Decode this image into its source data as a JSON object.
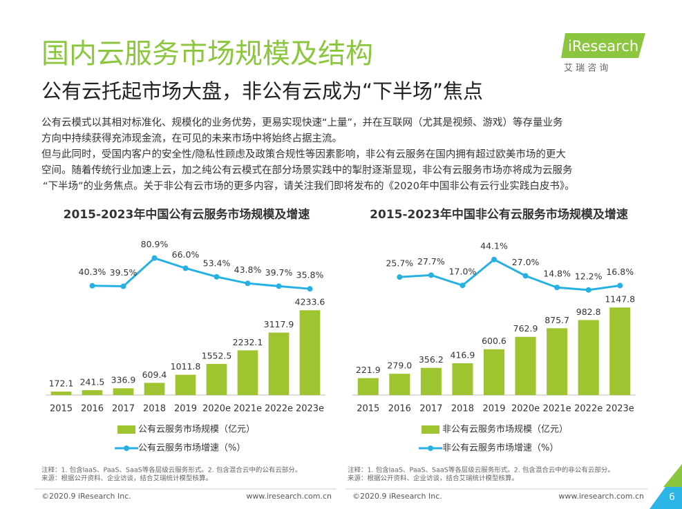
{
  "header": {
    "title": "国内云服务市场规模及结构",
    "subtitle": "公有云托起市场大盘，非公有云成为“下半场”焦点",
    "logo": "iResearch",
    "logo_cn": "艾 瑞 咨 询"
  },
  "body": [
    "公有云模式以其相对标准化、规模化的业务优势，更易实现快速“上量”，并在互联网（尤其是视频、游戏）等存量业务",
    "方向中持续获得充沛现金流，在可见的未来市场中将始终占据主流。",
    "但与此同时，受国内客户的安全性/隐私性顾虑及政策合规性等因素影响，非公有云服务在国内拥有超过欧美市场的更大",
    "空间。随着传统行业加速上云，加之纯公有云模式在部分场景实践中的掣肘逐渐显现，非公有云服务市场亦将成为云服务",
    "“下半场”的业务焦点。关于非公有云市场的更多内容，请关注我们即将发布的《2020年中国非公有云行业实践白皮书》。"
  ],
  "chart_data": [
    {
      "type": "bar",
      "title": "2015-2023年中国公有云服务市场规模及增速",
      "categories": [
        "2015",
        "2016",
        "2017",
        "2018",
        "2019",
        "2020e",
        "2021e",
        "2022e",
        "2023e"
      ],
      "series": [
        {
          "name": "公有云服务市场规模（亿元）",
          "type": "bar",
          "color": "#9ec52f",
          "values": [
            172.1,
            241.5,
            336.9,
            609.4,
            1011.8,
            1552.5,
            2232.1,
            3117.9,
            4233.6
          ]
        },
        {
          "name": "公有云服务市场增速（%）",
          "type": "line",
          "axis": "y2",
          "color": "#27b1e2",
          "values": [
            null,
            40.3,
            39.5,
            80.9,
            66.0,
            53.4,
            43.8,
            39.7,
            35.8
          ],
          "value_labels": [
            null,
            "40.3%",
            "39.5%",
            "80.9%",
            "66.0%",
            "53.4%",
            "43.8%",
            "39.7%",
            "35.8%"
          ]
        }
      ],
      "ylim": [
        0,
        8000
      ],
      "y2lim": [
        -120,
        115
      ],
      "grid": false,
      "notes": [
        "注释：1. 包含IaaS、PaaS、SaaS等各层级云服务形式。2. 包含混合云中的公有云部分。",
        "来源：根据公开资料、企业访谈，结合艾瑞统计模型核算。"
      ]
    },
    {
      "type": "bar",
      "title": "2015-2023年中国非公有云服务市场规模及增速",
      "categories": [
        "2015",
        "2016",
        "2017",
        "2018",
        "2019",
        "2020e",
        "2021e",
        "2022e",
        "2023e"
      ],
      "series": [
        {
          "name": "非公有云服务市场规模（亿元）",
          "type": "bar",
          "color": "#9ec52f",
          "values": [
            221.9,
            279.0,
            356.2,
            416.9,
            600.6,
            762.9,
            875.7,
            982.8,
            1147.8
          ],
          "value_labels": [
            "221.9",
            "279.0",
            "356.2",
            "416.9",
            "600.6",
            "762.9",
            "875.7",
            "982.8",
            "1147.8"
          ]
        },
        {
          "name": "非公有云服务市场增速（%）",
          "type": "line",
          "axis": "y2",
          "color": "#27b1e2",
          "values": [
            null,
            25.7,
            27.7,
            17.0,
            44.1,
            27.0,
            14.8,
            12.2,
            16.8
          ],
          "value_labels": [
            null,
            "25.7%",
            "27.7%",
            "17.0%",
            "44.1%",
            "27.0%",
            "14.8%",
            "12.2%",
            "16.8%"
          ]
        }
      ],
      "ylim": [
        0,
        2100
      ],
      "y2lim": [
        -98,
        70
      ],
      "grid": false,
      "notes": [
        "注释：1. 包含IaaS、PaaS、SaaS等各层级云服务形式。2. 包含混合云中的非公有云部分。",
        "来源：根据公开资料、企业访谈，结合艾瑞统计模型核算。"
      ]
    }
  ],
  "footer": {
    "copyright": "©2020.9 iResearch Inc.",
    "website": "www.iresearch.com.cn",
    "page": "6"
  }
}
